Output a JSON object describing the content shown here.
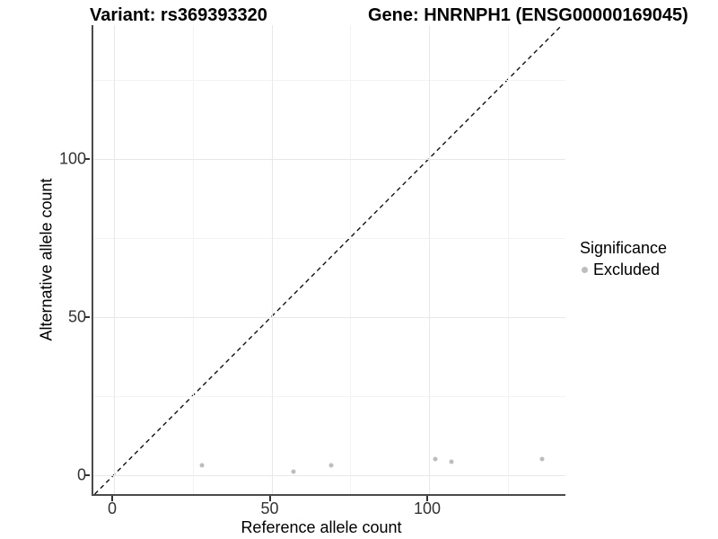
{
  "titles": {
    "variant": "Variant: rs369393320",
    "gene": "Gene: HNRNPH1 (ENSG00000169045)"
  },
  "chart_data": {
    "type": "scatter",
    "title_left": "Variant: rs369393320",
    "title_right": "Gene: HNRNPH1 (ENSG00000169045)",
    "xlabel": "Reference allele count",
    "ylabel": "Alternative allele count",
    "xlim": [
      -6.5,
      144
    ],
    "ylim": [
      -7,
      142
    ],
    "x_ticks": [
      0,
      50,
      100
    ],
    "y_ticks": [
      0,
      50,
      100
    ],
    "x_minor_ticks": [
      25,
      75,
      125
    ],
    "y_minor_ticks": [
      25,
      75,
      125
    ],
    "grid": "on",
    "identity_line": {
      "type": "dashed",
      "color": "#111111",
      "slope": 1,
      "intercept": 0
    },
    "series": [
      {
        "name": "Excluded",
        "color": "#bdbdbd",
        "points": [
          [
            28,
            3
          ],
          [
            57,
            1
          ],
          [
            69,
            3
          ],
          [
            102,
            5
          ],
          [
            107,
            4
          ],
          [
            136,
            5
          ]
        ]
      }
    ],
    "legend": {
      "title": "Significance",
      "position": "right",
      "items": [
        {
          "label": "Excluded",
          "color": "#bdbdbd"
        }
      ]
    }
  },
  "colors": {
    "background": "#ffffff",
    "grid_major": "#e8e8e8",
    "grid_minor": "#f3f3f3",
    "axis_line": "#4a4a4a",
    "tick_text": "#333333",
    "point": "#bdbdbd"
  }
}
